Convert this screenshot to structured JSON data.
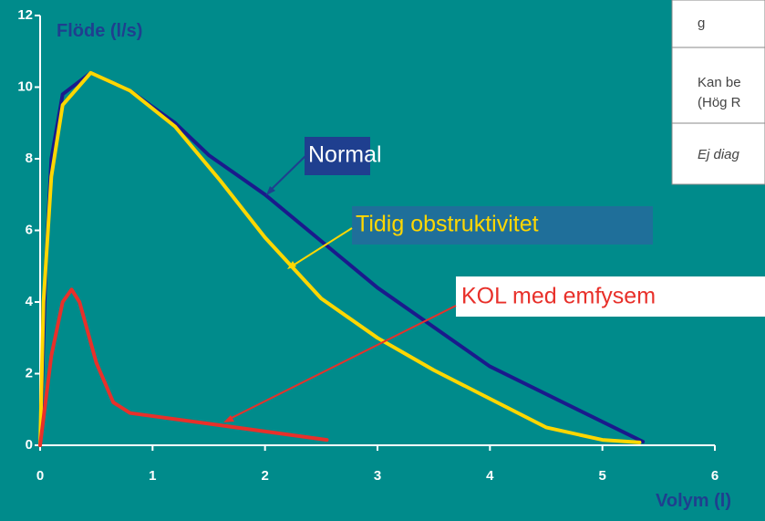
{
  "chart_data": {
    "type": "line",
    "y_label": "Flöde (l/s)",
    "x_label": "Volym (l)",
    "xlim": [
      0,
      6
    ],
    "xticks": [
      0,
      1,
      2,
      3,
      4,
      5,
      6
    ],
    "ylim": [
      0,
      12
    ],
    "yticks": [
      0,
      2,
      4,
      6,
      8,
      10,
      12
    ],
    "series": [
      {
        "name": "Normal",
        "color": "#1a1a8c",
        "x": [
          0,
          0.05,
          0.1,
          0.2,
          0.45,
          0.8,
          1.2,
          1.5,
          2,
          3,
          4,
          5.36
        ],
        "values": [
          0,
          5,
          8,
          9.8,
          10.4,
          9.9,
          9.0,
          8.1,
          7.0,
          4.4,
          2.2,
          0.1
        ]
      },
      {
        "name": "Tidig obstruktivitet",
        "color": "#ffd700",
        "x": [
          0,
          0.03,
          0.1,
          0.2,
          0.45,
          0.8,
          1.2,
          1.6,
          2,
          2.5,
          3,
          3.5,
          4,
          4.5,
          5,
          5.33
        ],
        "values": [
          0,
          4,
          7.5,
          9.5,
          10.4,
          9.9,
          8.9,
          7.4,
          5.8,
          4.1,
          3.0,
          2.1,
          1.3,
          0.5,
          0.15,
          0.08
        ]
      },
      {
        "name": "KOL med emfysem",
        "color": "#e8302a",
        "x": [
          0,
          0.1,
          0.2,
          0.28,
          0.35,
          0.5,
          0.65,
          0.8,
          1.5,
          2.55
        ],
        "values": [
          0,
          2.5,
          4.0,
          4.35,
          4.0,
          2.3,
          1.2,
          0.9,
          0.6,
          0.15
        ]
      }
    ],
    "overlay_text": [
      "g",
      "Kan be",
      "(Hög R",
      "Ej diag"
    ]
  }
}
